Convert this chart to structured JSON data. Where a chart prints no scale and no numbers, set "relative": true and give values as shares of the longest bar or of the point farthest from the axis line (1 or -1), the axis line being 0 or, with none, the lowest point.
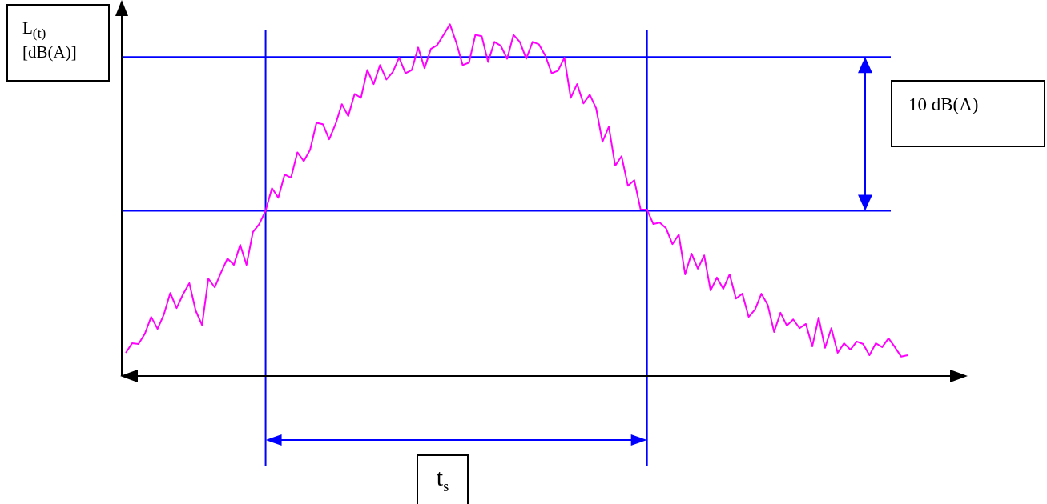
{
  "chart_data": {
    "type": "line",
    "ylabel": "L$_{(t)}$ [dB(A)]",
    "relative": true,
    "tick_labels": false,
    "annotations": [
      "10 dB(A)",
      "t$_{s}$"
    ],
    "ref_lines": [
      {
        "axis": "y",
        "value": 0.907,
        "color": "#0000ff"
      },
      {
        "axis": "y",
        "value": 0.47,
        "color": "#0000ff"
      }
    ],
    "categories": [
      null,
      null,
      null,
      null,
      null,
      null,
      null,
      null,
      null,
      null,
      null,
      null,
      null,
      null,
      null,
      null,
      null,
      null,
      null,
      null,
      null,
      null,
      null,
      null,
      null,
      null,
      null,
      null,
      null,
      null,
      null,
      null,
      null,
      null,
      null,
      null,
      null,
      null,
      null,
      null,
      null,
      null,
      null,
      null,
      null,
      null,
      null,
      null,
      null,
      null,
      null,
      null,
      null,
      null,
      null,
      null,
      null,
      null,
      null,
      null,
      null,
      null,
      null,
      null,
      null,
      null,
      null,
      null,
      null,
      null,
      null,
      null,
      null,
      null,
      null,
      null,
      null,
      null,
      null,
      null,
      null,
      null,
      null,
      null,
      null,
      null,
      null,
      null,
      null,
      null,
      null,
      null,
      null,
      null,
      null,
      null,
      null,
      null,
      null,
      null,
      null,
      null,
      null,
      null,
      null,
      null,
      null,
      null,
      null,
      null,
      null,
      null,
      null,
      null,
      null,
      null,
      null,
      null,
      null,
      null,
      null,
      null,
      null,
      null
    ],
    "series": [
      {
        "color": "#ff00ff",
        "values": [
          0.066,
          0.093,
          0.091,
          0.12,
          0.168,
          0.134,
          0.175,
          0.236,
          0.193,
          0.232,
          0.264,
          0.186,
          0.145,
          0.277,
          0.252,
          0.295,
          0.334,
          0.316,
          0.373,
          0.316,
          0.409,
          0.432,
          0.47,
          0.534,
          0.507,
          0.573,
          0.564,
          0.636,
          0.611,
          0.643,
          0.72,
          0.716,
          0.673,
          0.716,
          0.773,
          0.739,
          0.802,
          0.791,
          0.87,
          0.83,
          0.884,
          0.843,
          0.864,
          0.905,
          0.861,
          0.87,
          0.934,
          0.875,
          0.93,
          0.941,
          0.97,
          1,
          0.948,
          0.884,
          0.891,
          0.97,
          0.966,
          0.893,
          0.95,
          0.939,
          0.902,
          0.97,
          0.95,
          0.902,
          0.95,
          0.943,
          0.911,
          0.861,
          0.868,
          0.905,
          0.791,
          0.83,
          0.775,
          0.8,
          0.761,
          0.666,
          0.709,
          0.598,
          0.625,
          0.541,
          0.557,
          0.473,
          0.473,
          0.432,
          0.436,
          0.42,
          0.375,
          0.402,
          0.289,
          0.348,
          0.305,
          0.343,
          0.243,
          0.28,
          0.248,
          0.289,
          0.22,
          0.234,
          0.168,
          0.189,
          0.234,
          0.202,
          0.125,
          0.18,
          0.143,
          0.161,
          0.136,
          0.148,
          0.084,
          0.166,
          0.08,
          0.136,
          0.066,
          0.093,
          0.075,
          0.098,
          0.091,
          0.059,
          0.093,
          0.082,
          0.107,
          0.082,
          0.055,
          0.059
        ]
      }
    ]
  }
}
